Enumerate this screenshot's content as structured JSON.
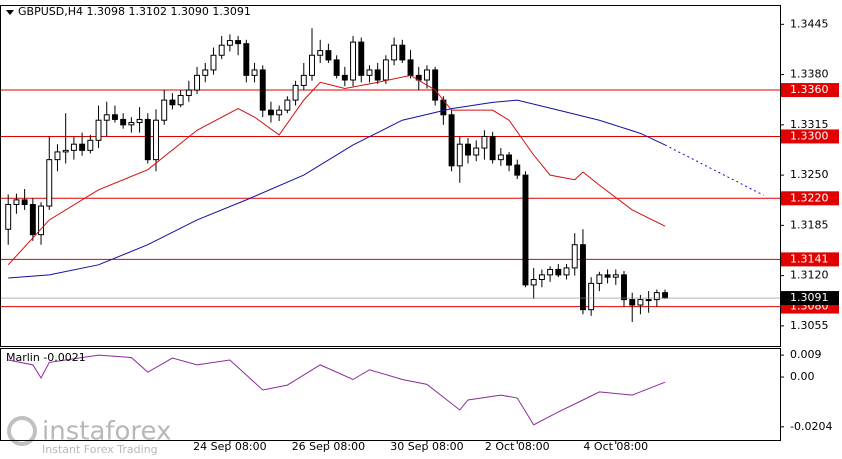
{
  "chart_data": {
    "type": "candlestick",
    "title": "GBPUSD,H4  1.3098 1.3102 1.3090 1.3091",
    "xlim": [
      -1,
      94
    ],
    "ylim": [
      1.3029,
      1.347
    ],
    "yticks": [
      1.3445,
      {
        "value": 1.338,
        "label": "1.3380"
      },
      1.3315,
      {
        "value": 1.325,
        "label": "1.3250"
      },
      1.3185,
      {
        "value": 1.312,
        "label": "1.3120"
      },
      1.3055
    ],
    "xticks": [
      {
        "value": 27,
        "label": "24 Sep 08:00"
      },
      {
        "value": 39,
        "label": "26 Sep 08:00"
      },
      {
        "value": 51,
        "label": "30 Sep 08:00"
      },
      {
        "value": 62,
        "label": "2 Oct 08:00"
      },
      {
        "value": 74,
        "label": "4 Oct 08:00"
      }
    ],
    "bull_color": "#ffffff",
    "bear_color": "#000000",
    "candles": [
      [
        1.318,
        1.3225,
        1.316,
        1.3212
      ],
      [
        1.3212,
        1.3226,
        1.32,
        1.3218
      ],
      [
        1.3218,
        1.3232,
        1.3205,
        1.3212
      ],
      [
        1.3212,
        1.322,
        1.3165,
        1.3173
      ],
      [
        1.3173,
        1.3215,
        1.316,
        1.321
      ],
      [
        1.321,
        1.33,
        1.3205,
        1.327
      ],
      [
        1.327,
        1.329,
        1.3255,
        1.328
      ],
      [
        1.328,
        1.333,
        1.3265,
        1.3282
      ],
      [
        1.3282,
        1.33,
        1.327,
        1.329
      ],
      [
        1.329,
        1.3305,
        1.3275,
        1.3282
      ],
      [
        1.3282,
        1.3302,
        1.3278,
        1.3295
      ],
      [
        1.3295,
        1.334,
        1.3285,
        1.3321
      ],
      [
        1.3321,
        1.3345,
        1.33,
        1.3328
      ],
      [
        1.3328,
        1.334,
        1.3318,
        1.3322
      ],
      [
        1.3322,
        1.333,
        1.331,
        1.3315
      ],
      [
        1.3315,
        1.3325,
        1.3305,
        1.3318
      ],
      [
        1.3318,
        1.3338,
        1.3305,
        1.3322
      ],
      [
        1.3322,
        1.333,
        1.3265,
        1.327
      ],
      [
        1.327,
        1.3335,
        1.3255,
        1.3321
      ],
      [
        1.3321,
        1.336,
        1.3315,
        1.3347
      ],
      [
        1.3347,
        1.3356,
        1.3335,
        1.3341
      ],
      [
        1.3341,
        1.336,
        1.3338,
        1.3353
      ],
      [
        1.3353,
        1.3372,
        1.3345,
        1.336
      ],
      [
        1.336,
        1.339,
        1.3355,
        1.3379
      ],
      [
        1.3379,
        1.3395,
        1.337,
        1.3386
      ],
      [
        1.3386,
        1.3415,
        1.338,
        1.3405
      ],
      [
        1.3405,
        1.343,
        1.34,
        1.3418
      ],
      [
        1.3418,
        1.3432,
        1.341,
        1.3424
      ],
      [
        1.3424,
        1.343,
        1.3405,
        1.342
      ],
      [
        1.342,
        1.3425,
        1.337,
        1.3379
      ],
      [
        1.3379,
        1.3395,
        1.337,
        1.3386
      ],
      [
        1.3386,
        1.3392,
        1.3325,
        1.3334
      ],
      [
        1.3334,
        1.3345,
        1.3318,
        1.3328
      ],
      [
        1.3328,
        1.334,
        1.332,
        1.3334
      ],
      [
        1.3334,
        1.3352,
        1.333,
        1.3347
      ],
      [
        1.3347,
        1.3372,
        1.334,
        1.3366
      ],
      [
        1.3366,
        1.3395,
        1.336,
        1.3379
      ],
      [
        1.3379,
        1.344,
        1.3372,
        1.3405
      ],
      [
        1.3405,
        1.3425,
        1.3395,
        1.3411
      ],
      [
        1.3411,
        1.342,
        1.3395,
        1.3399
      ],
      [
        1.3399,
        1.3405,
        1.3375,
        1.3379
      ],
      [
        1.3379,
        1.339,
        1.3365,
        1.3373
      ],
      [
        1.3373,
        1.343,
        1.3365,
        1.3422
      ],
      [
        1.3422,
        1.3428,
        1.337,
        1.3379
      ],
      [
        1.3379,
        1.3392,
        1.337,
        1.3386
      ],
      [
        1.3386,
        1.3395,
        1.3368,
        1.3373
      ],
      [
        1.3373,
        1.3405,
        1.3368,
        1.3399
      ],
      [
        1.3399,
        1.3428,
        1.3392,
        1.3418
      ],
      [
        1.3418,
        1.3425,
        1.3395,
        1.3399
      ],
      [
        1.3399,
        1.3412,
        1.3375,
        1.3379
      ],
      [
        1.3379,
        1.339,
        1.336,
        1.3373
      ],
      [
        1.3373,
        1.3392,
        1.3362,
        1.3386
      ],
      [
        1.3386,
        1.339,
        1.334,
        1.3347
      ],
      [
        1.3347,
        1.3352,
        1.3315,
        1.3328
      ],
      [
        1.3328,
        1.3335,
        1.3255,
        1.3262
      ],
      [
        1.3262,
        1.33,
        1.324,
        1.329
      ],
      [
        1.329,
        1.3298,
        1.3265,
        1.3276
      ],
      [
        1.3276,
        1.3295,
        1.3268,
        1.3285
      ],
      [
        1.3285,
        1.3308,
        1.327,
        1.33
      ],
      [
        1.33,
        1.3306,
        1.3265,
        1.327
      ],
      [
        1.327,
        1.3285,
        1.3262,
        1.3276
      ],
      [
        1.3276,
        1.328,
        1.3255,
        1.3263
      ],
      [
        1.3263,
        1.327,
        1.3245,
        1.325
      ],
      [
        1.325,
        1.3255,
        1.3105,
        1.3108
      ],
      [
        1.3108,
        1.313,
        1.309,
        1.3115
      ],
      [
        1.3115,
        1.3128,
        1.3105,
        1.3121
      ],
      [
        1.3121,
        1.3132,
        1.3112,
        1.3128
      ],
      [
        1.3128,
        1.3135,
        1.3118,
        1.3121
      ],
      [
        1.3121,
        1.3135,
        1.3115,
        1.313
      ],
      [
        1.313,
        1.3175,
        1.312,
        1.316
      ],
      [
        1.316,
        1.318,
        1.307,
        1.3076
      ],
      [
        1.3076,
        1.3118,
        1.3068,
        1.311
      ],
      [
        1.311,
        1.3125,
        1.31,
        1.3121
      ],
      [
        1.3121,
        1.3128,
        1.311,
        1.3118
      ],
      [
        1.3118,
        1.3128,
        1.3108,
        1.3121
      ],
      [
        1.3121,
        1.3126,
        1.308,
        1.3089
      ],
      [
        1.3089,
        1.3098,
        1.306,
        1.3082
      ],
      [
        1.3082,
        1.3095,
        1.307,
        1.3089
      ],
      [
        1.3089,
        1.31,
        1.3072,
        1.3089
      ],
      [
        1.3089,
        1.3102,
        1.308,
        1.3098
      ],
      [
        1.3098,
        1.3102,
        1.309,
        1.3091
      ]
    ],
    "series": [
      {
        "color": "#d01010",
        "dash": false,
        "x": [
          0,
          5,
          11,
          17,
          23,
          28,
          30,
          33,
          36,
          38,
          41,
          45,
          49,
          52,
          54,
          59,
          61,
          64,
          66,
          69,
          70,
          72,
          76,
          80
        ],
        "values": [
          1.3134,
          1.3192,
          1.3231,
          1.3257,
          1.3308,
          1.3336,
          1.3325,
          1.3302,
          1.3347,
          1.337,
          1.3362,
          1.337,
          1.3379,
          1.336,
          1.3334,
          1.3334,
          1.3321,
          1.3276,
          1.325,
          1.3244,
          1.3254,
          1.3237,
          1.3205,
          1.3184
        ]
      },
      {
        "color": "#1010a0",
        "dash": false,
        "x": [
          0,
          5,
          11,
          17,
          23,
          29,
          36,
          42,
          48,
          54,
          59,
          62,
          67,
          72,
          77,
          80
        ],
        "values": [
          1.3117,
          1.3121,
          1.3134,
          1.316,
          1.3192,
          1.3218,
          1.325,
          1.3289,
          1.3321,
          1.3336,
          1.3344,
          1.3347,
          1.3334,
          1.3321,
          1.3304,
          1.3289
        ]
      },
      {
        "color": "#1010c0",
        "dash": true,
        "x": [
          80,
          92
        ],
        "values": [
          1.3289,
          1.3224
        ]
      }
    ],
    "levels": [
      {
        "value": 1.336,
        "label": "1.3360"
      },
      {
        "value": 1.33,
        "label": "1.3300"
      },
      {
        "value": 1.322,
        "label": "1.3220"
      },
      1.3141,
      {
        "value": 1.308,
        "label": "1.3080"
      }
    ],
    "level_color": "#e00000",
    "last_price": 1.3091,
    "indicator": {
      "title": "Marlin -0.0021",
      "color": "#8a2a9a",
      "ylim": [
        -0.0258,
        0.0115
      ],
      "yticks": [
        0.009,
        {
          "value": 0,
          "label": "0.00"
        },
        -0.0204
      ],
      "x": [
        0,
        3,
        4,
        5,
        11,
        15,
        17,
        20,
        23,
        27,
        31,
        34,
        38,
        42,
        44,
        48,
        51,
        55,
        56,
        60,
        62,
        64,
        67,
        70,
        72,
        76,
        80
      ],
      "values": [
        0.007,
        0.005,
        -0.0004,
        0.006,
        0.009,
        0.008,
        0.002,
        0.0078,
        0.005,
        0.007,
        -0.0053,
        -0.0033,
        0.005,
        -0.001,
        0.003,
        -0.001,
        -0.003,
        -0.0135,
        -0.0094,
        -0.0074,
        -0.0086,
        -0.0196,
        -0.0143,
        -0.0094,
        -0.0061,
        -0.0074,
        -0.0021
      ]
    },
    "watermark": {
      "brand": "instaforex",
      "tagline": "Instant Forex Trading"
    }
  }
}
